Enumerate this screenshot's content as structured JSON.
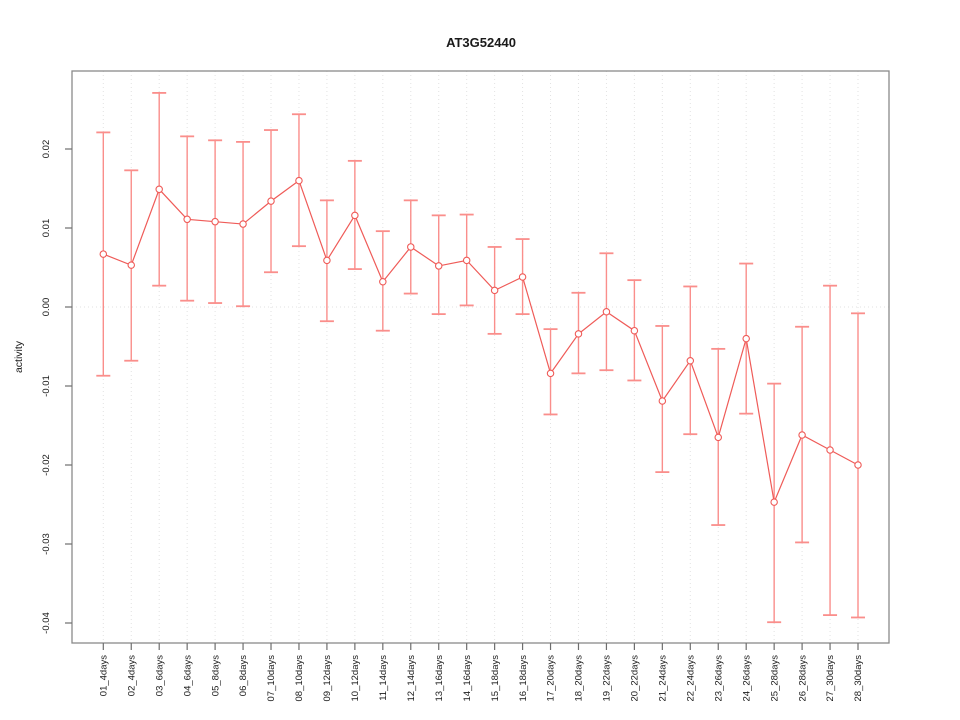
{
  "figure": {
    "title": "AT3G52440",
    "y_axis_label": "activity"
  },
  "chart_data": {
    "type": "line",
    "title": "AT3G52440",
    "xlabel": "",
    "ylabel": "activity",
    "legend": "none",
    "grid": "dotted vertical gridline at each category; dotted horizontal gridline at y=0",
    "categories": [
      "01_4days",
      "02_4days",
      "03_6days",
      "04_6days",
      "05_8days",
      "06_8days",
      "07_10days",
      "08_10days",
      "09_12days",
      "10_12days",
      "11_14days",
      "12_14days",
      "13_16days",
      "14_16days",
      "15_18days",
      "16_18days",
      "17_20days",
      "18_20days",
      "19_22days",
      "20_22days",
      "21_24days",
      "22_24days",
      "23_26days",
      "24_26days",
      "25_28days",
      "26_28days",
      "27_30days",
      "28_30days"
    ],
    "series": [
      {
        "name": "activity_mean",
        "values": [
          0.0067,
          0.0053,
          0.0149,
          0.0111,
          0.0108,
          0.0105,
          0.0134,
          0.016,
          0.0059,
          0.0116,
          0.0032,
          0.0076,
          0.0052,
          0.0059,
          0.0021,
          0.0038,
          -0.0084,
          -0.0034,
          -0.0006,
          -0.003,
          -0.0119,
          -0.0068,
          -0.0165,
          -0.004,
          -0.0247,
          -0.0162,
          -0.0181,
          -0.02
        ]
      },
      {
        "name": "error_upper",
        "values": [
          0.0221,
          0.0173,
          0.0271,
          0.0216,
          0.0211,
          0.0209,
          0.0224,
          0.0244,
          0.0135,
          0.0185,
          0.0096,
          0.0135,
          0.0116,
          0.0117,
          0.0076,
          0.0086,
          -0.0028,
          0.0018,
          0.0068,
          0.0034,
          -0.0024,
          0.0026,
          -0.0053,
          0.0055,
          -0.0097,
          -0.0025,
          0.0027,
          -0.0008
        ]
      },
      {
        "name": "error_lower",
        "values": [
          -0.0087,
          -0.0068,
          0.0027,
          0.0008,
          0.0005,
          0.0001,
          0.0044,
          0.0077,
          -0.0018,
          0.0048,
          -0.003,
          0.0017,
          -0.0009,
          0.0002,
          -0.0034,
          -0.0009,
          -0.0136,
          -0.0084,
          -0.008,
          -0.0093,
          -0.0209,
          -0.0161,
          -0.0276,
          -0.0135,
          -0.0399,
          -0.0298,
          -0.039,
          -0.0393
        ]
      }
    ],
    "y_tick_labels": [
      "0.02",
      "0.01",
      "0.00",
      "-0.01",
      "-0.02",
      "-0.03",
      "-0.04"
    ],
    "y_tick_values": [
      0.02,
      0.01,
      0.0,
      -0.01,
      -0.02,
      -0.03,
      -0.04
    ],
    "ylim": [
      -0.0425,
      0.0299
    ],
    "colors": {
      "line": "#EF5B58",
      "marker_stroke": "#EF5B58",
      "marker_fill": "#FFFFFF",
      "error_bar": "#FA8E8B",
      "grid": "#E2E2E2",
      "box": "#8A8A8A",
      "tick": "#6E6E6E",
      "text": "#1A1A1A"
    }
  }
}
